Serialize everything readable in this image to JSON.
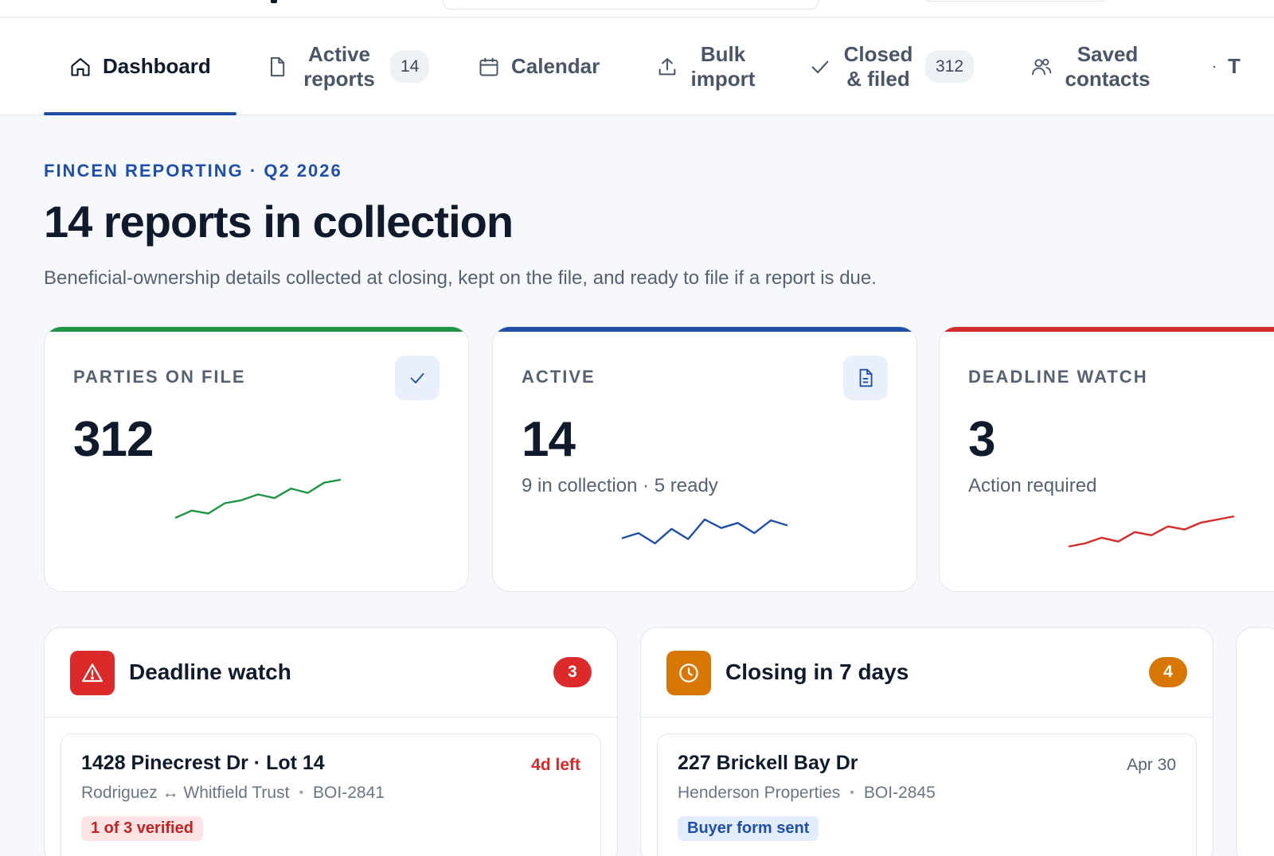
{
  "tabs": [
    {
      "label": "Dashboard",
      "icon": "home-icon",
      "active": true
    },
    {
      "label": "Active reports",
      "icon": "document-icon",
      "count": "14"
    },
    {
      "label": "Calendar",
      "icon": "calendar-icon"
    },
    {
      "label": "Bulk import",
      "icon": "upload-icon"
    },
    {
      "label": "Closed & filed",
      "icon": "check-icon",
      "count": "312"
    },
    {
      "label": "Saved contacts",
      "icon": "users-icon"
    },
    {
      "label": "T",
      "icon": "dot-icon"
    }
  ],
  "header": {
    "eyebrow": "FINCEN REPORTING · Q2 2026",
    "title": "14 reports in collection",
    "subtitle": "Beneficial-ownership details collected at closing, kept on the file, and ready to file if a report is due."
  },
  "stats": [
    {
      "label": "PARTIES ON FILE",
      "value": "312",
      "note": "",
      "icon": "check-icon",
      "color": "#1e9444",
      "trend": [
        2,
        3,
        2.6,
        4,
        4.4,
        5.2,
        4.7,
        6,
        5.4,
        6.8,
        7.2
      ]
    },
    {
      "label": "ACTIVE",
      "value": "14",
      "note": "9 in collection · 5 ready",
      "icon": "document-icon",
      "color": "#1f4fa8",
      "trend": [
        4,
        4.6,
        3.4,
        5.1,
        3.9,
        6.2,
        5.2,
        5.8,
        4.6,
        6.1,
        5.5
      ]
    },
    {
      "label": "DEADLINE WATCH",
      "value": "3",
      "note": "Action required",
      "icon": "",
      "color": "#d42a2a",
      "trend": [
        2,
        2.5,
        3.4,
        2.8,
        4.3,
        3.8,
        5.2,
        4.7,
        5.8,
        6.3,
        6.8
      ]
    }
  ],
  "panels": [
    {
      "title": "Deadline watch",
      "icon": "warning-icon",
      "color": "#dc2a2a",
      "count": "3",
      "item": {
        "address": "1428 Pinecrest Dr · Lot 14",
        "due": "4d left",
        "party": "Rodriguez ↔ Whitfield Trust",
        "ref": "BOI-2841",
        "tag": "1 of 3 verified"
      }
    },
    {
      "title": "Closing in 7 days",
      "icon": "clock-icon",
      "color": "#d97706",
      "count": "4",
      "item": {
        "address": "227 Brickell Bay Dr",
        "due": "Apr 30",
        "party": "Henderson Properties",
        "ref": "BOI-2845",
        "tag": "Buyer form sent"
      }
    }
  ]
}
